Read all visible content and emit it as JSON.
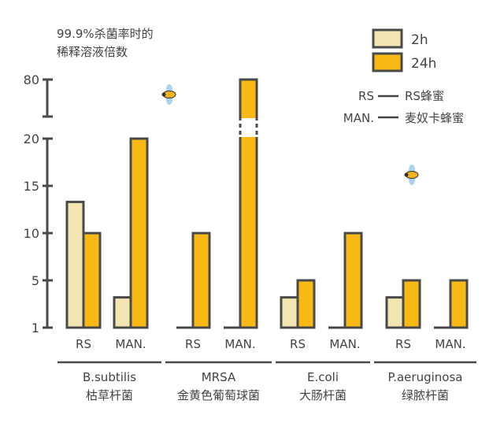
{
  "chart_data": {
    "type": "bar",
    "title": "99.9%杀菌率时的\n稀释溶液倍数",
    "ylabel_lines": [
      "99.9%杀菌率时的",
      "稀释溶液倍数"
    ],
    "y_ticks": [
      "1",
      "5",
      "10",
      "15",
      "20",
      "80"
    ],
    "y_axis_break": "between 20 and 80",
    "groups": [
      {
        "name": "B.subtilis",
        "name_cn": "枯草杆菌"
      },
      {
        "name": "MRSA",
        "name_cn": "金黄色葡萄球菌"
      },
      {
        "name": "E.coli",
        "name_cn": "大肠杆菌"
      },
      {
        "name": "P.aeruginosa",
        "name_cn": "绿脓杆菌"
      }
    ],
    "categories": [
      "RS",
      "MAN."
    ],
    "series": [
      {
        "name": "2h",
        "color": "#f3e6b3",
        "values": [
          [
            13.3,
            3.2
          ],
          [
            1,
            1
          ],
          [
            3.2,
            1
          ],
          [
            3.2,
            1
          ]
        ]
      },
      {
        "name": "24h",
        "color": "#f9b914",
        "values": [
          [
            10,
            20
          ],
          [
            10,
            80
          ],
          [
            5,
            10
          ],
          [
            5,
            5
          ]
        ]
      }
    ],
    "legend": [
      {
        "label": "2h",
        "color": "#f3e6b3"
      },
      {
        "label": "24h",
        "color": "#f9b914"
      }
    ],
    "legend_placement": "top-right",
    "abbreviations": [
      {
        "abbr": "RS",
        "meaning": "RS蜂蜜"
      },
      {
        "abbr": "MAN.",
        "meaning": "麦奴卡蜂蜜"
      }
    ],
    "outline_color": "#4a4a4a",
    "grid": false
  }
}
